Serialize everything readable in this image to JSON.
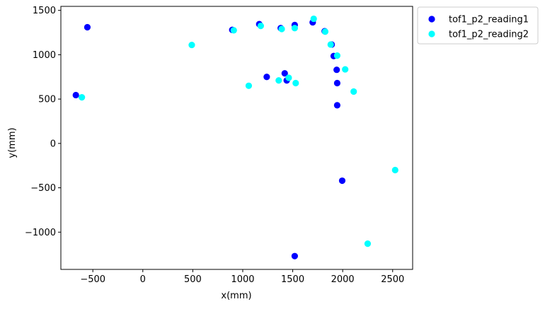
{
  "chart_data": {
    "type": "scatter",
    "title": "",
    "xlabel": "x(mm)",
    "ylabel": "y(mm)",
    "xlim": [
      -820,
      2700
    ],
    "ylim": [
      -1420,
      1545
    ],
    "grid": false,
    "legend_position": "outside-top-right",
    "x_ticks": [
      -500,
      0,
      500,
      1000,
      1500,
      2000,
      2500
    ],
    "x_tick_labels": [
      "−500",
      "0",
      "500",
      "1000",
      "1500",
      "2000",
      "2500"
    ],
    "y_ticks": [
      -1000,
      -500,
      0,
      500,
      1000,
      1500
    ],
    "y_tick_labels": [
      "−1000",
      "−500",
      "0",
      "500",
      "1000",
      "1500"
    ],
    "series": [
      {
        "name": "tof1_p2_reading1",
        "color": "#0000ff",
        "points": [
          [
            -555,
            1310
          ],
          [
            -670,
            545
          ],
          [
            895,
            1280
          ],
          [
            1165,
            1345
          ],
          [
            1380,
            1300
          ],
          [
            1520,
            1335
          ],
          [
            1240,
            750
          ],
          [
            1420,
            790
          ],
          [
            1440,
            710
          ],
          [
            1700,
            1365
          ],
          [
            1820,
            1265
          ],
          [
            1890,
            1115
          ],
          [
            1910,
            985
          ],
          [
            1940,
            830
          ],
          [
            1945,
            680
          ],
          [
            1945,
            430
          ],
          [
            1995,
            -420
          ],
          [
            1520,
            -1270
          ]
        ]
      },
      {
        "name": "tof1_p2_reading2",
        "color": "#00ffff",
        "points": [
          [
            -610,
            520
          ],
          [
            490,
            1110
          ],
          [
            910,
            1275
          ],
          [
            1180,
            1325
          ],
          [
            1390,
            1290
          ],
          [
            1520,
            1300
          ],
          [
            1060,
            650
          ],
          [
            1360,
            710
          ],
          [
            1460,
            740
          ],
          [
            1530,
            680
          ],
          [
            1710,
            1405
          ],
          [
            1825,
            1260
          ],
          [
            1880,
            1115
          ],
          [
            1945,
            990
          ],
          [
            2025,
            835
          ],
          [
            2110,
            585
          ],
          [
            2525,
            -300
          ],
          [
            2250,
            -1130
          ]
        ]
      }
    ]
  }
}
